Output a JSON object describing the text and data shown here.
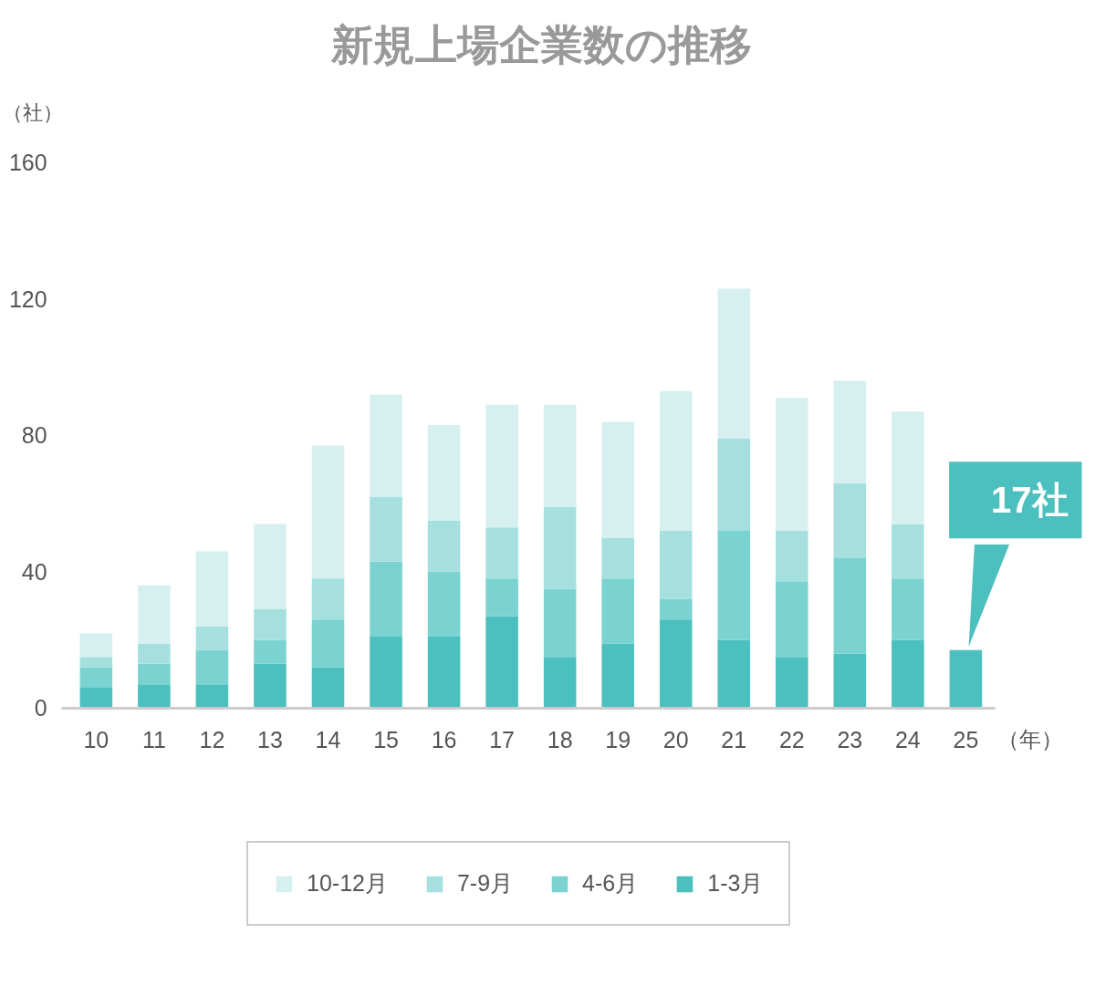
{
  "chart_data": {
    "type": "bar",
    "title": "新規上場企業数の推移",
    "ylabel": "（社）",
    "xlabel": "（年）",
    "stacked": true,
    "categories": [
      "10",
      "11",
      "12",
      "13",
      "14",
      "15",
      "16",
      "17",
      "18",
      "19",
      "20",
      "21",
      "22",
      "23",
      "24",
      "25"
    ],
    "series": [
      {
        "name": "1-3月",
        "color": "#4cbfbf",
        "values": [
          6,
          7,
          7,
          13,
          12,
          21,
          21,
          27,
          15,
          19,
          26,
          20,
          15,
          16,
          20,
          17
        ]
      },
      {
        "name": "4-6月",
        "color": "#7ad3d0",
        "values": [
          6,
          6,
          10,
          7,
          14,
          22,
          19,
          11,
          20,
          19,
          6,
          32,
          22,
          28,
          18,
          null
        ]
      },
      {
        "name": "7-9月",
        "color": "#a5e0df",
        "values": [
          3,
          6,
          7,
          9,
          12,
          19,
          15,
          15,
          24,
          12,
          20,
          27,
          15,
          22,
          16,
          null
        ]
      },
      {
        "name": "10-12月",
        "color": "#d6f0ef",
        "values": [
          7,
          17,
          22,
          25,
          39,
          30,
          28,
          36,
          30,
          34,
          41,
          44,
          39,
          30,
          33,
          null
        ]
      }
    ],
    "ylim": [
      0,
      160
    ],
    "yticks": [
      0,
      40,
      80,
      120,
      160
    ],
    "grid": false,
    "legend": "bottom",
    "annotations": [
      {
        "text": "17社",
        "x": "25",
        "y": 17
      }
    ]
  }
}
